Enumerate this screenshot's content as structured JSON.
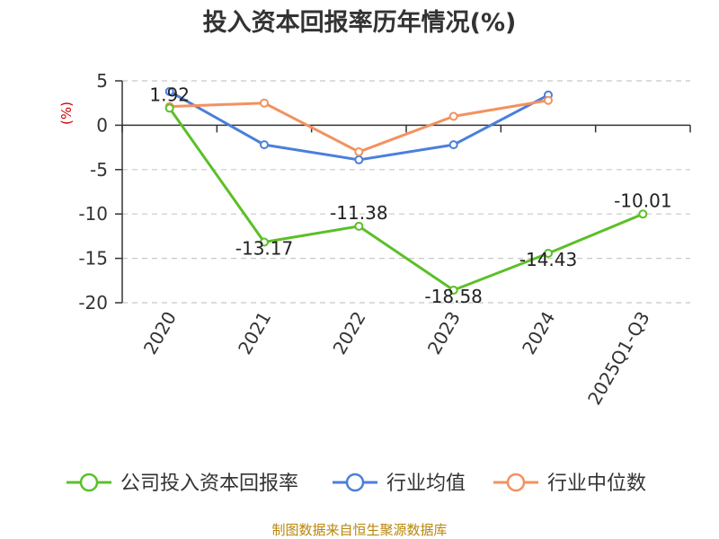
{
  "chart_data": {
    "type": "line",
    "title": "投入资本回报率历年情况(%)",
    "ylabel": "(%)",
    "xlabel": "",
    "categories": [
      "2020",
      "2021",
      "2022",
      "2023",
      "2024",
      "2025Q1-Q3"
    ],
    "ylim": [
      -20,
      5
    ],
    "yticks": [
      5,
      0,
      -5,
      -10,
      -15,
      -20
    ],
    "grid": true,
    "legend_position": "bottom",
    "series": [
      {
        "name": "公司投入资本回报率",
        "color": "#5cbf27",
        "values": [
          1.92,
          -13.17,
          -11.38,
          -18.58,
          -14.43,
          -10.01
        ],
        "labels": [
          "1.92",
          "-13.17",
          "-11.38",
          "-18.58",
          "-14.43",
          "-10.01"
        ]
      },
      {
        "name": "行业均值",
        "color": "#4a7fdc",
        "values": [
          3.8,
          -2.2,
          -3.9,
          -2.2,
          3.4,
          null
        ]
      },
      {
        "name": "行业中位数",
        "color": "#f4915e",
        "values": [
          2.1,
          2.5,
          -3.0,
          1.0,
          2.8,
          null
        ]
      }
    ],
    "source": "制图数据来自恒生聚源数据库"
  }
}
